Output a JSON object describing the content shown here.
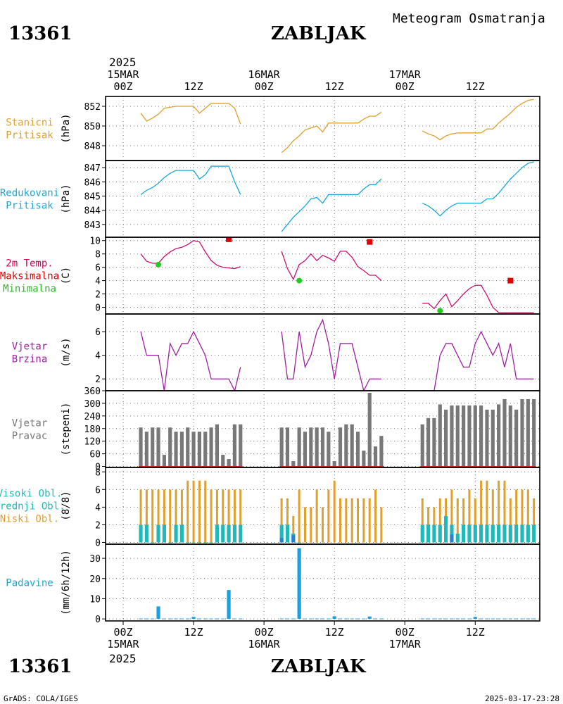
{
  "header": {
    "station_id": "13361",
    "station_name": "ZABLJAK",
    "subtitle": "Meteogram Osmatranja"
  },
  "footer": {
    "station_id": "13361",
    "station_name": "ZABLJAK",
    "credit": "GrADS: COLA/IGES",
    "timestamp": "2025-03-17-23:28"
  },
  "time_axis": {
    "year": "2025",
    "hours_from_start": [
      0,
      12,
      24,
      36,
      48,
      60
    ],
    "top_labels": [
      "00Z",
      "12Z",
      "00Z",
      "12Z",
      "00Z",
      "12Z"
    ],
    "date_labels": [
      {
        "hour": 0,
        "text": "15MAR"
      },
      {
        "hour": 24,
        "text": "16MAR"
      },
      {
        "hour": 48,
        "text": "17MAR"
      }
    ],
    "bottom_labels": [
      "00Z",
      "12Z",
      "00Z",
      "12Z",
      "00Z",
      "12Z"
    ],
    "range_hours": [
      -3,
      71
    ]
  },
  "chart_data": [
    {
      "type": "line",
      "id": "pressure",
      "label": [
        "Stanicni",
        "Pritisak"
      ],
      "ylabel": "(hPa)",
      "color": "#e0a030",
      "ylim": [
        846.5,
        853
      ],
      "yticks": [
        848,
        850,
        852
      ],
      "segments": [
        {
          "x": [
            3,
            4,
            5,
            6,
            7,
            8,
            9,
            10,
            11,
            12,
            13,
            14,
            15,
            16,
            17,
            18,
            19,
            20
          ],
          "y": [
            851.3,
            850.5,
            850.8,
            851.2,
            851.8,
            851.9,
            852.0,
            852.0,
            852.0,
            852.0,
            851.3,
            851.8,
            852.3,
            852.3,
            852.3,
            852.3,
            851.8,
            850.2
          ]
        },
        {
          "x": [
            27,
            28,
            29,
            30,
            31,
            32,
            33,
            34,
            35,
            36,
            37,
            38,
            39,
            40,
            41,
            42,
            43,
            44
          ],
          "y": [
            847.3,
            847.8,
            848.5,
            849.0,
            849.6,
            849.8,
            850.0,
            849.4,
            850.3,
            850.3,
            850.3,
            850.3,
            850.3,
            850.3,
            850.7,
            851.0,
            851.0,
            851.4
          ]
        },
        {
          "x": [
            51,
            52,
            53,
            54,
            55,
            56,
            57,
            58,
            59,
            60,
            61,
            62,
            63,
            64,
            65,
            66,
            67,
            68,
            69,
            70
          ],
          "y": [
            849.5,
            849.2,
            849.0,
            848.6,
            849.0,
            849.2,
            849.3,
            849.3,
            849.3,
            849.3,
            849.3,
            849.7,
            849.7,
            850.3,
            850.8,
            851.3,
            851.9,
            852.3,
            852.6,
            852.7
          ]
        }
      ]
    },
    {
      "type": "line",
      "id": "reduced_pressure",
      "label": [
        "Redukovani",
        "Pritisak"
      ],
      "ylabel": "(hPa)",
      "color": "#1aa8d8",
      "ylim": [
        842.1,
        847.5
      ],
      "yticks": [
        843,
        844,
        845,
        846,
        847
      ],
      "segments": [
        {
          "x": [
            3,
            4,
            5,
            6,
            7,
            8,
            9,
            10,
            11,
            12,
            13,
            14,
            15,
            16,
            17,
            18,
            19,
            20
          ],
          "y": [
            845.1,
            845.4,
            845.6,
            845.9,
            846.3,
            846.6,
            846.8,
            846.8,
            846.8,
            846.8,
            846.2,
            846.5,
            847.1,
            847.1,
            847.1,
            847.1,
            846.0,
            845.1
          ]
        },
        {
          "x": [
            27,
            28,
            29,
            30,
            31,
            32,
            33,
            34,
            35,
            36,
            37,
            38,
            39,
            40,
            41,
            42,
            43,
            44
          ],
          "y": [
            842.5,
            843.0,
            843.5,
            843.9,
            844.3,
            844.8,
            844.9,
            844.5,
            845.1,
            845.1,
            845.1,
            845.1,
            845.1,
            845.1,
            845.5,
            845.8,
            845.8,
            846.2
          ]
        },
        {
          "x": [
            51,
            52,
            53,
            54,
            55,
            56,
            57,
            58,
            59,
            60,
            61,
            62,
            63,
            64,
            65,
            66,
            67,
            68,
            69,
            70
          ],
          "y": [
            844.5,
            844.3,
            844.0,
            843.6,
            844.0,
            844.3,
            844.5,
            844.5,
            844.5,
            844.5,
            844.5,
            844.8,
            844.8,
            845.2,
            845.7,
            846.2,
            846.6,
            847.0,
            847.3,
            847.4
          ]
        }
      ]
    },
    {
      "type": "line",
      "id": "temperature",
      "label": [
        "2m Temp.",
        "Maksimalna",
        "Minimalna"
      ],
      "label_colors": [
        "#d8005a",
        "#e00000",
        "#22bb22"
      ],
      "ylabel": "(C)",
      "color": "#cc1070",
      "ylim": [
        -1,
        10.5
      ],
      "yticks": [
        0,
        2,
        4,
        6,
        8,
        10
      ],
      "segments": [
        {
          "x": [
            3,
            4,
            5,
            6,
            7,
            8,
            9,
            10,
            11,
            12,
            13,
            14,
            15,
            16,
            17,
            18,
            19,
            20
          ],
          "y": [
            8.0,
            6.9,
            6.6,
            6.6,
            7.6,
            8.3,
            8.8,
            9.0,
            9.4,
            10.0,
            9.8,
            8.3,
            7.0,
            6.3,
            6.0,
            5.9,
            5.8,
            6.1
          ]
        },
        {
          "x": [
            27,
            28,
            29,
            30,
            31,
            32,
            33,
            34,
            35,
            36,
            37,
            38,
            39,
            40,
            41,
            42,
            43,
            44
          ],
          "y": [
            8.4,
            5.8,
            4.2,
            6.4,
            7.0,
            8.0,
            7.0,
            7.8,
            7.4,
            6.9,
            8.4,
            8.4,
            7.5,
            6.1,
            5.5,
            4.8,
            4.8,
            4.0
          ]
        },
        {
          "x": [
            51,
            52,
            53,
            54,
            55,
            56,
            57,
            58,
            59,
            60,
            61,
            62,
            63,
            64,
            65,
            66,
            67,
            68,
            69,
            70
          ],
          "y": [
            0.6,
            0.6,
            -0.2,
            1.0,
            2.0,
            0.1,
            1.0,
            2.0,
            2.8,
            3.3,
            3.3,
            1.8,
            0.0,
            -0.8,
            -0.8,
            -0.8,
            -0.8,
            -0.8,
            -0.8,
            -0.8
          ]
        }
      ],
      "maxima": [
        {
          "x": 18,
          "y": 10.2
        },
        {
          "x": 42,
          "y": 9.8
        },
        {
          "x": 66,
          "y": 4.0
        }
      ],
      "minima": [
        {
          "x": 6,
          "y": 6.4
        },
        {
          "x": 30,
          "y": 4.0
        },
        {
          "x": 54,
          "y": -0.5
        }
      ],
      "max_color": "#e00000",
      "min_color": "#22cc22"
    },
    {
      "type": "line",
      "id": "wind_speed",
      "label": [
        "Vjetar",
        "Brzina"
      ],
      "ylabel": "(m/s)",
      "color": "#a020a0",
      "ylim": [
        1,
        7.5
      ],
      "yticks": [
        2,
        4,
        6
      ],
      "segments": [
        {
          "x": [
            3,
            4,
            5,
            6,
            7,
            8,
            9,
            10,
            11,
            12,
            13,
            14,
            15,
            16,
            17,
            18,
            19,
            20
          ],
          "y": [
            6,
            4,
            4,
            4,
            1,
            5,
            4,
            5,
            5,
            6,
            5,
            4,
            2,
            2,
            2,
            2,
            1,
            3
          ]
        },
        {
          "x": [
            27,
            28,
            29,
            30,
            31,
            32,
            33,
            34,
            35,
            36,
            37,
            38,
            39,
            40,
            41,
            42,
            43,
            44
          ],
          "y": [
            6,
            2,
            2,
            6,
            3,
            4,
            6,
            7,
            5,
            2,
            5,
            5,
            5,
            3,
            1,
            2,
            2,
            2
          ]
        },
        {
          "x": [
            51,
            52,
            53,
            54,
            55,
            56,
            57,
            58,
            59,
            60,
            61,
            62,
            63,
            64,
            65,
            66,
            67,
            68,
            69,
            70
          ],
          "y": [
            1,
            1,
            1,
            4,
            5,
            5,
            4,
            3,
            3,
            5,
            6,
            5,
            4,
            5,
            3,
            5,
            2,
            2,
            2,
            2
          ]
        }
      ]
    },
    {
      "type": "bar",
      "id": "wind_direction",
      "label": [
        "Vjetar",
        "Pravac"
      ],
      "ylabel": "(stepeni)",
      "color": "#787878",
      "baseline_color": "#cc2222",
      "ylim": [
        -5,
        360
      ],
      "yticks": [
        0,
        60,
        120,
        180,
        240,
        300,
        360
      ],
      "x": [
        3,
        4,
        5,
        6,
        7,
        8,
        9,
        10,
        11,
        12,
        13,
        14,
        15,
        16,
        17,
        18,
        19,
        20,
        27,
        28,
        29,
        30,
        31,
        32,
        33,
        34,
        35,
        36,
        37,
        38,
        39,
        40,
        41,
        42,
        43,
        44,
        51,
        52,
        53,
        54,
        55,
        56,
        57,
        58,
        59,
        60,
        61,
        62,
        63,
        64,
        65,
        66,
        67,
        68,
        69,
        70
      ],
      "values": [
        185,
        165,
        185,
        185,
        55,
        185,
        165,
        165,
        185,
        165,
        165,
        165,
        185,
        200,
        55,
        35,
        200,
        200,
        185,
        185,
        25,
        185,
        165,
        185,
        185,
        185,
        165,
        25,
        185,
        200,
        200,
        165,
        75,
        350,
        95,
        145,
        200,
        230,
        230,
        295,
        270,
        290,
        290,
        290,
        290,
        290,
        290,
        270,
        270,
        295,
        320,
        290,
        270,
        320,
        320,
        320
      ]
    },
    {
      "type": "bar",
      "id": "cloud_cover",
      "label": [
        "Visoki Obl.",
        "Srednji Obl.",
        "Niski Obl."
      ],
      "label_colors": [
        "#22b8b8",
        "#22b8b8",
        "#e0a030"
      ],
      "ylabel": "(8/8)",
      "ylim": [
        -0.2,
        8.5
      ],
      "yticks": [
        0,
        2,
        4,
        6,
        8
      ],
      "series": [
        {
          "name": "Niski Obl.",
          "color": "#e0a030",
          "x": [
            3,
            4,
            5,
            6,
            7,
            8,
            9,
            10,
            11,
            12,
            13,
            14,
            15,
            16,
            17,
            18,
            19,
            20,
            27,
            28,
            29,
            30,
            31,
            32,
            33,
            34,
            35,
            36,
            37,
            38,
            39,
            40,
            41,
            42,
            43,
            44,
            51,
            52,
            53,
            54,
            55,
            56,
            57,
            58,
            59,
            60,
            61,
            62,
            63,
            64,
            65,
            66,
            67,
            68,
            69,
            70
          ],
          "values": [
            6,
            6,
            6,
            6,
            6,
            6,
            6,
            6,
            7,
            7,
            7,
            7,
            6,
            6,
            6,
            6,
            6,
            6,
            5,
            5,
            3,
            6,
            4,
            4,
            6,
            4,
            6,
            7,
            5,
            5,
            5,
            5,
            5,
            5,
            6,
            4,
            5,
            4,
            4,
            5,
            5,
            6,
            5,
            5,
            6,
            5,
            7,
            7,
            6,
            7,
            7,
            5,
            6,
            6,
            6,
            5
          ]
        },
        {
          "name": "Srednji Obl.",
          "color": "#22b8b8",
          "x": [
            3,
            4,
            5,
            6,
            7,
            8,
            9,
            10,
            11,
            12,
            13,
            14,
            15,
            16,
            17,
            18,
            19,
            20,
            27,
            28,
            29,
            30,
            51,
            52,
            53,
            54,
            55,
            56,
            57,
            58,
            59,
            60,
            61,
            62,
            63,
            64,
            65,
            66,
            67,
            68,
            69,
            70
          ],
          "values": [
            2,
            2,
            0,
            2,
            2,
            0,
            2,
            2,
            0,
            0,
            0,
            0,
            0,
            2,
            2,
            2,
            2,
            2,
            2,
            2,
            1,
            0,
            2,
            2,
            2,
            2,
            3,
            2,
            1,
            2,
            2,
            2,
            2,
            2,
            2,
            2,
            2,
            2,
            2,
            2,
            2,
            2
          ]
        },
        {
          "name": "Visoki Obl.",
          "color": "#2a7fd0",
          "x": [
            27,
            29,
            56
          ],
          "values": [
            0.5,
            0.8,
            0.9
          ]
        }
      ]
    },
    {
      "type": "bar",
      "id": "precipitation",
      "label": [
        "Padavine"
      ],
      "label_colors": [
        "#1aa8d8"
      ],
      "ylabel": "(mm/6h/12h)",
      "color": "#1aa0e0",
      "ylim": [
        -1,
        37
      ],
      "yticks": [
        0,
        10,
        20,
        30
      ],
      "x": [
        3,
        4,
        5,
        6,
        7,
        8,
        9,
        10,
        11,
        12,
        13,
        14,
        15,
        16,
        17,
        18,
        19,
        20,
        27,
        28,
        29,
        30,
        31,
        32,
        33,
        34,
        35,
        36,
        37,
        38,
        39,
        40,
        41,
        42,
        43,
        44,
        51,
        52,
        53,
        54,
        55,
        56,
        57,
        58,
        59,
        60,
        61,
        62,
        63,
        64,
        65,
        66,
        67,
        68,
        69,
        70
      ],
      "values": [
        0.2,
        0.2,
        0.2,
        6.2,
        0.2,
        0.2,
        0.2,
        0.2,
        0.2,
        1.0,
        0.2,
        0.2,
        0.2,
        0.2,
        0.2,
        14.3,
        0.2,
        0.2,
        0.2,
        0.2,
        0.2,
        35.0,
        0.2,
        0.2,
        0.2,
        0.2,
        0.2,
        1.3,
        0.2,
        0.2,
        0.2,
        0.2,
        0.2,
        1.2,
        0.2,
        0.2,
        0.2,
        0.2,
        0.2,
        0.2,
        0.2,
        0.2,
        0.2,
        0.2,
        0.2,
        1.0,
        0.2,
        0.2,
        0.2,
        0.2,
        0.2,
        0.2,
        0.2,
        0.2,
        0.2,
        0.2
      ]
    }
  ]
}
